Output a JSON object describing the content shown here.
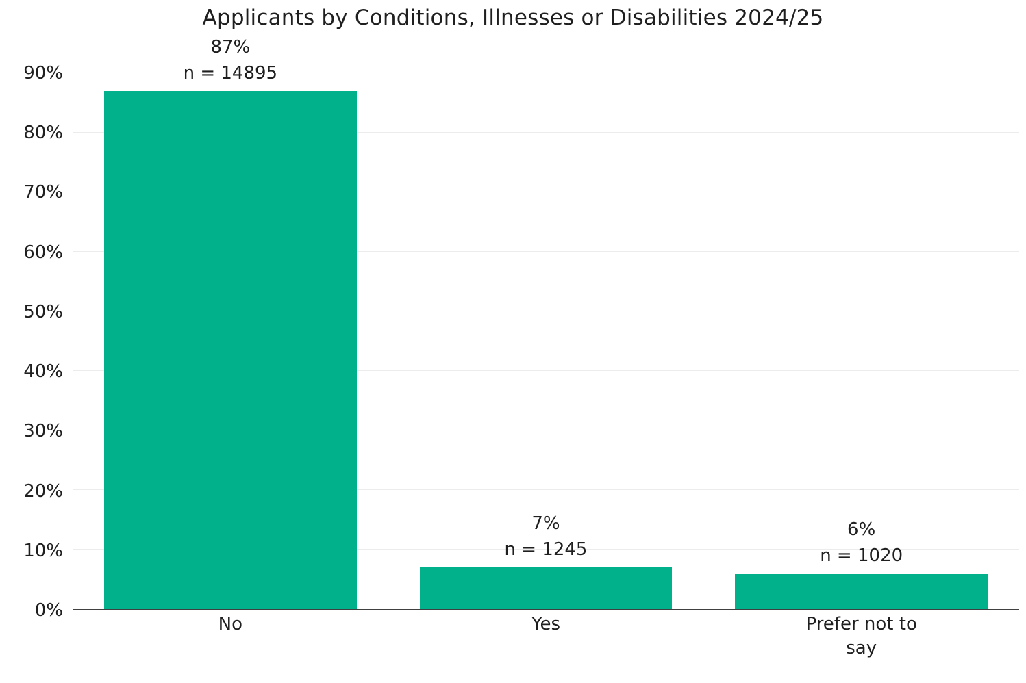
{
  "chart_data": {
    "type": "bar",
    "title": "Applicants by Conditions, Illnesses or Disabilities 2024/25",
    "categories": [
      "No",
      "Yes",
      "Prefer not to say"
    ],
    "values": [
      87,
      7,
      6
    ],
    "counts": [
      14895,
      1245,
      1020
    ],
    "pct_labels": [
      "87%",
      "7%",
      "6%"
    ],
    "n_labels": [
      "n = 14895",
      "n = 1245",
      "n = 1020"
    ],
    "xlabel": "",
    "ylabel": "",
    "ylim": [
      0,
      90
    ],
    "y_ticks": [
      {
        "value": 0,
        "label": "0%"
      },
      {
        "value": 10,
        "label": "10%"
      },
      {
        "value": 20,
        "label": "20%"
      },
      {
        "value": 30,
        "label": "30%"
      },
      {
        "value": 40,
        "label": "40%"
      },
      {
        "value": 50,
        "label": "50%"
      },
      {
        "value": 60,
        "label": "60%"
      },
      {
        "value": 70,
        "label": "70%"
      },
      {
        "value": 80,
        "label": "80%"
      },
      {
        "value": 90,
        "label": "90%"
      }
    ],
    "grid": true,
    "legend": "none",
    "colors": {
      "bar": "#00B18C",
      "gridline": "#ECECEC",
      "axis_line": "#404040",
      "text": "#1F1F1F",
      "background": "#FFFFFF"
    }
  }
}
